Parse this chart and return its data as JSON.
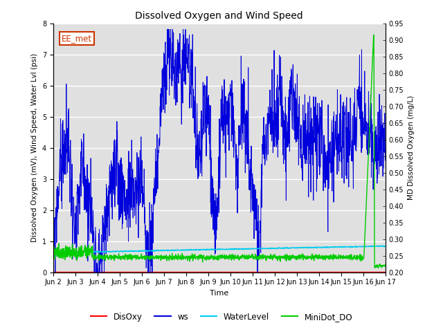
{
  "title": "Dissolved Oxygen and Wind Speed",
  "ylabel_left": "Dissolved Oxygen (mV), Wind Speed, Water Lvl (psi)",
  "ylabel_right": "MD Dissolved Oxygen (mg/L)",
  "xlabel": "Time",
  "ylim_left": [
    0.0,
    8.0
  ],
  "ylim_right": [
    0.2,
    0.95
  ],
  "yticks_left": [
    0.0,
    1.0,
    2.0,
    3.0,
    4.0,
    5.0,
    6.0,
    7.0,
    8.0
  ],
  "yticks_right": [
    0.2,
    0.25,
    0.3,
    0.35,
    0.4,
    0.45,
    0.5,
    0.55,
    0.6,
    0.65,
    0.7,
    0.75,
    0.8,
    0.85,
    0.9,
    0.95
  ],
  "xtick_labels": [
    "Jun 2",
    "Jun 3",
    "Jun 4",
    "Jun 5",
    "Jun 6",
    "Jun 7",
    "Jun 8",
    "Jun 9",
    "Jun 10",
    "Jun 11",
    "Jun 12",
    "Jun 13",
    "Jun 14",
    "Jun 15",
    "Jun 16",
    "Jun 17"
  ],
  "annotation_text": "EE_met",
  "annotation_fg": "#cc3300",
  "annotation_bg": "white",
  "annotation_edge": "#cc3300",
  "bg_color": "#e0e0e0",
  "colors": {
    "DisOxy": "#ff0000",
    "ws": "#0000dd",
    "WaterLevel": "#00ccee",
    "MiniDot_DO": "#00cc00"
  },
  "legend_labels": [
    "DisOxy",
    "ws",
    "WaterLevel",
    "MiniDot_DO"
  ],
  "n_days": 15,
  "n_pts": 1440
}
